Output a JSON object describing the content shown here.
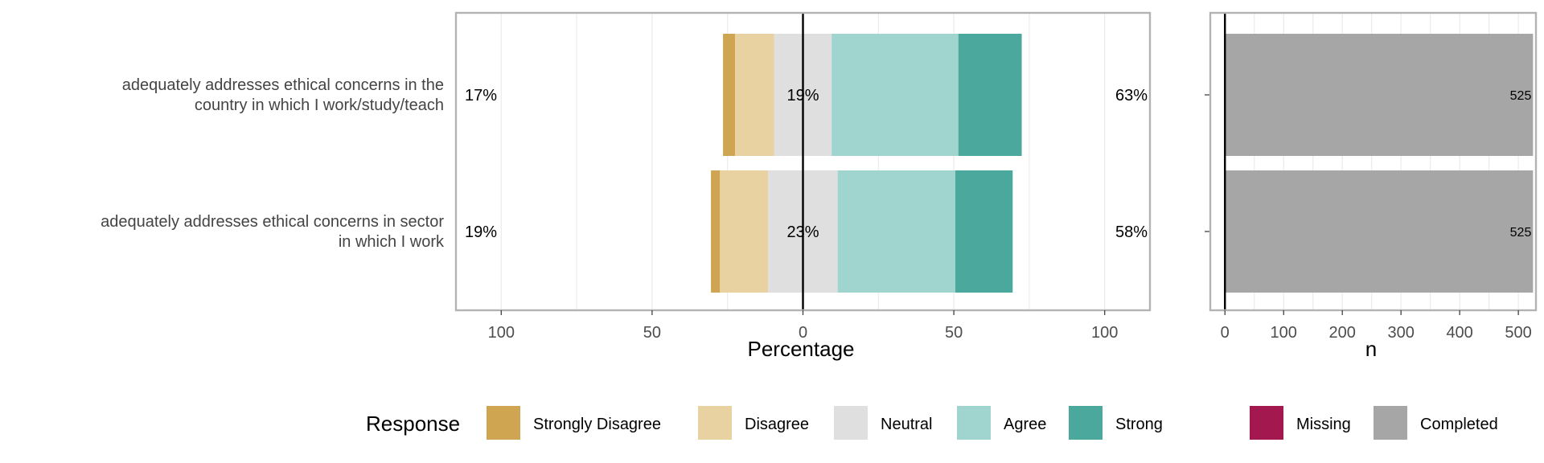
{
  "chart_data": {
    "type": "bar",
    "layout": "diverging-stacked-likert-with-count-panel",
    "categories": [
      [
        "adequately addresses ethical concerns in the",
        "country in which I work/study/teach"
      ],
      [
        "adequately addresses ethical concerns in sector",
        "in which I work"
      ]
    ],
    "series": [
      {
        "name": "Strongly Disagree",
        "color": "#D0A552",
        "values": [
          4,
          3
        ]
      },
      {
        "name": "Disagree",
        "color": "#E8D2A2",
        "values": [
          13,
          16
        ]
      },
      {
        "name": "Neutral",
        "color": "#DFDFDF",
        "values": [
          19,
          23
        ]
      },
      {
        "name": "Agree",
        "color": "#A0D4CE",
        "values": [
          42,
          39
        ]
      },
      {
        "name": "Strongly Agree",
        "color": "#4AA89D",
        "values": [
          21,
          19
        ]
      }
    ],
    "low_labels": [
      "17%",
      "19%"
    ],
    "neutral_labels": [
      "19%",
      "23%"
    ],
    "high_labels": [
      "63%",
      "58%"
    ],
    "xlabel": "Percentage",
    "xticks": [
      100,
      50,
      0,
      50,
      100
    ],
    "xlim": [
      -115,
      115
    ],
    "count_panel": {
      "xlabel": "n",
      "values": [
        525,
        525
      ],
      "value_labels": [
        "525",
        "525"
      ],
      "xticks": [
        0,
        100,
        200,
        300,
        400,
        500
      ],
      "xlim": [
        -25,
        530
      ],
      "color": "#A6A6A6"
    },
    "legend": {
      "title": "Response",
      "placement": "bottom",
      "items": [
        {
          "label": "Strongly Disagree",
          "color": "#D0A552"
        },
        {
          "label": "Disagree",
          "color": "#E8D2A2"
        },
        {
          "label": "Neutral",
          "color": "#DFDFDF"
        },
        {
          "label": "Agree",
          "color": "#A0D4CE"
        },
        {
          "label": "Strong",
          "color": "#4AA89D"
        },
        {
          "label": "Missing",
          "color": "#A3194F"
        },
        {
          "label": "Completed",
          "color": "#A6A6A6"
        }
      ]
    },
    "grid": true
  }
}
